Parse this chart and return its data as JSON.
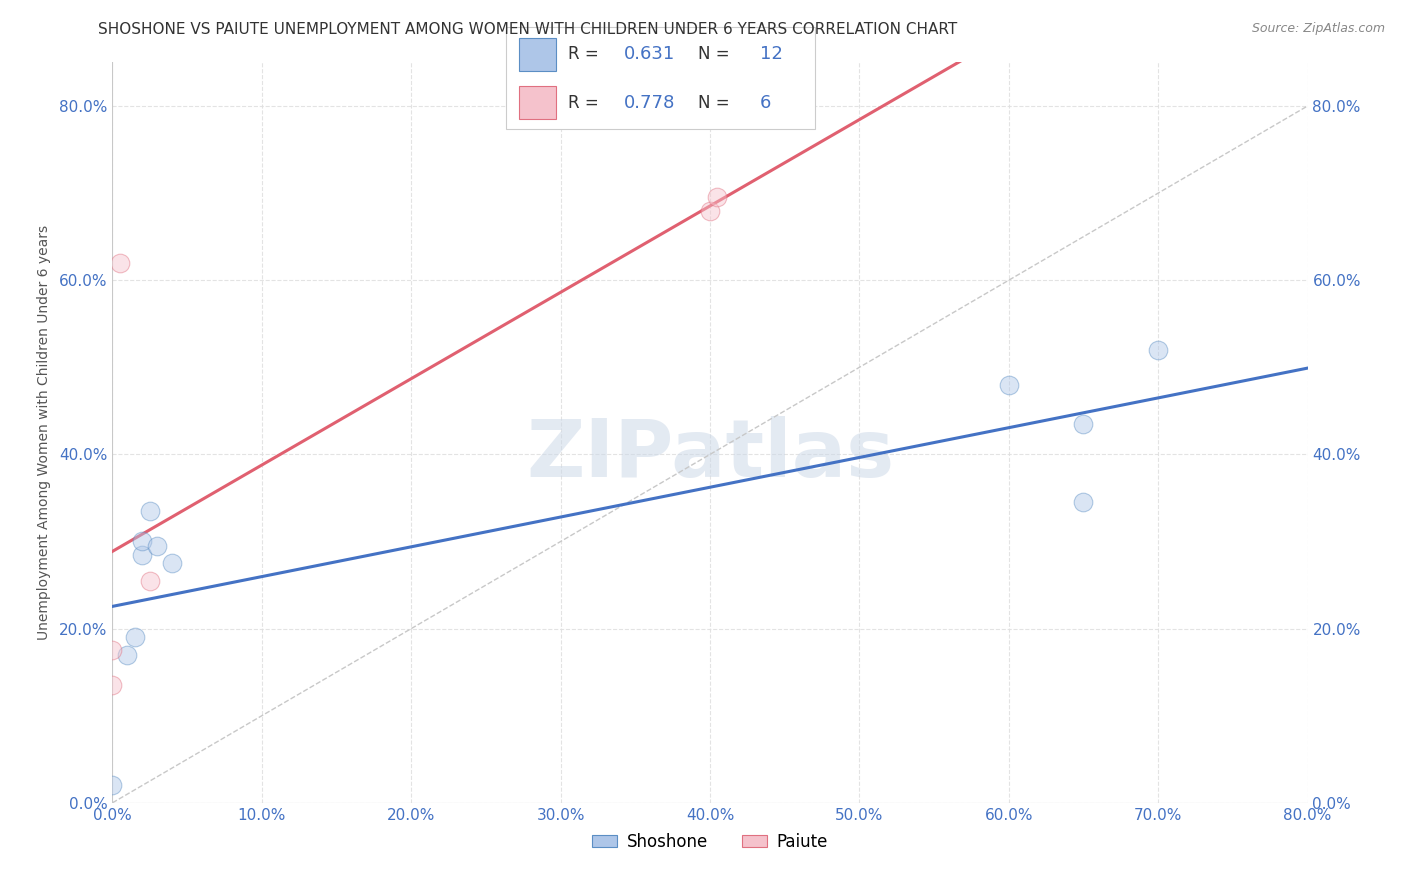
{
  "title": "SHOSHONE VS PAIUTE UNEMPLOYMENT AMONG WOMEN WITH CHILDREN UNDER 6 YEARS CORRELATION CHART",
  "source": "Source: ZipAtlas.com",
  "ylabel": "Unemployment Among Women with Children Under 6 years",
  "watermark": "ZIPatlas",
  "shoshone": {
    "R": 0.631,
    "N": 12,
    "fill_color": "#aec6e8",
    "edge_color": "#5b8ec4",
    "x": [
      0.0,
      0.01,
      0.015,
      0.02,
      0.02,
      0.025,
      0.03,
      0.04,
      0.6,
      0.65,
      0.65,
      0.7
    ],
    "y": [
      0.02,
      0.17,
      0.19,
      0.285,
      0.3,
      0.335,
      0.295,
      0.275,
      0.48,
      0.435,
      0.345,
      0.52
    ]
  },
  "paiute": {
    "R": 0.778,
    "N": 6,
    "fill_color": "#f5c2cc",
    "edge_color": "#e07080",
    "x": [
      0.0,
      0.0,
      0.005,
      0.025,
      0.4,
      0.405
    ],
    "y": [
      0.135,
      0.175,
      0.62,
      0.255,
      0.68,
      0.695
    ]
  },
  "shoshone_line_color": "#4472c4",
  "paiute_line_color": "#e06070",
  "xlim": [
    0.0,
    0.8
  ],
  "ylim": [
    0.0,
    0.85
  ],
  "xticks": [
    0.0,
    0.1,
    0.2,
    0.3,
    0.4,
    0.5,
    0.6,
    0.7,
    0.8
  ],
  "yticks": [
    0.0,
    0.2,
    0.4,
    0.6,
    0.8
  ],
  "xtick_labels": [
    "0.0%",
    "10.0%",
    "20.0%",
    "30.0%",
    "40.0%",
    "50.0%",
    "60.0%",
    "70.0%",
    "80.0%"
  ],
  "ytick_labels": [
    "0.0%",
    "20.0%",
    "40.0%",
    "60.0%",
    "80.0%"
  ],
  "axis_color": "#4472c4",
  "grid_color": "#e0e0e0",
  "background_color": "#ffffff",
  "marker_size": 180,
  "marker_alpha": 0.45,
  "title_fontsize": 11,
  "tick_fontsize": 11,
  "ylabel_fontsize": 10
}
